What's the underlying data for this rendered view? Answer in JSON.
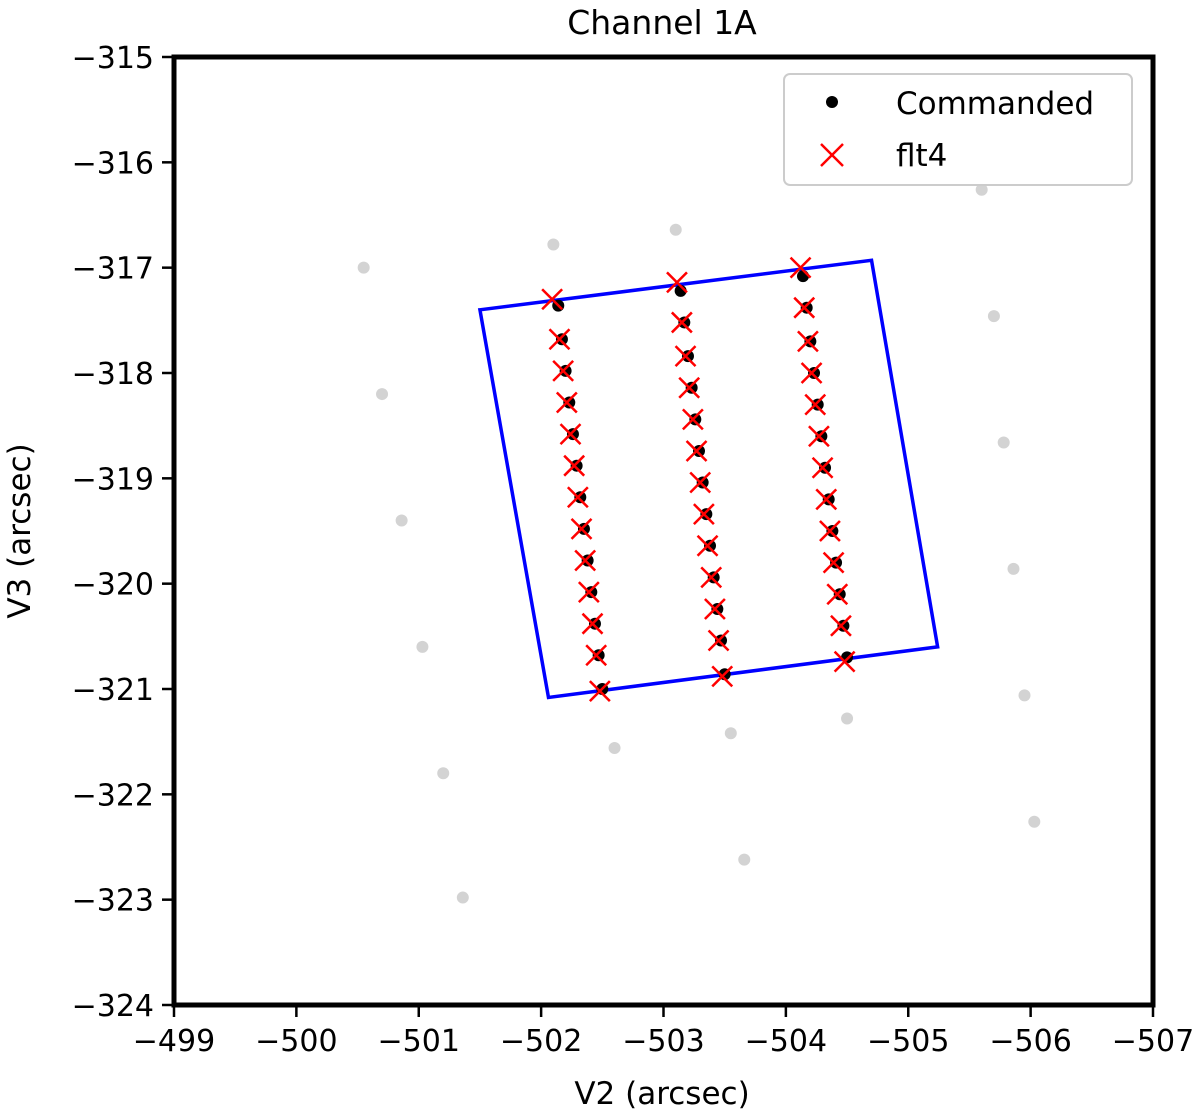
{
  "chart_data": {
    "type": "scatter",
    "title": "Channel 1A",
    "xlabel": "V2 (arcsec)",
    "ylabel": "V3 (arcsec)",
    "xlim": [
      -499,
      -507
    ],
    "ylim": [
      -324,
      -315
    ],
    "x_ticks": [
      -499,
      -500,
      -501,
      -502,
      -503,
      -504,
      -505,
      -506,
      -507
    ],
    "x_tick_labels": [
      "−499",
      "−500",
      "−501",
      "−502",
      "−503",
      "−504",
      "−505",
      "−506",
      "−507"
    ],
    "y_ticks": [
      -315,
      -316,
      -317,
      -318,
      -319,
      -320,
      -321,
      -322,
      -323,
      -324
    ],
    "y_tick_labels": [
      "−315",
      "−316",
      "−317",
      "−318",
      "−319",
      "−320",
      "−321",
      "−322",
      "−323",
      "−324"
    ],
    "grid": false,
    "legend_position": "top-right",
    "legend": [
      {
        "label": "Commanded",
        "marker": "dot",
        "color": "#000000"
      },
      {
        "label": "flt4",
        "marker": "x",
        "color": "#ff0000"
      }
    ],
    "footprint": {
      "color": "#0000ff",
      "vertices": [
        [
          -501.5,
          -317.4
        ],
        [
          -504.7,
          -316.93
        ],
        [
          -505.24,
          -320.6
        ],
        [
          -502.06,
          -321.08
        ]
      ]
    },
    "background_points": {
      "color": "#d3d3d3",
      "points": [
        [
          -500.55,
          -317.0
        ],
        [
          -500.7,
          -318.2
        ],
        [
          -500.86,
          -319.4
        ],
        [
          -501.03,
          -320.6
        ],
        [
          -501.2,
          -321.8
        ],
        [
          -501.36,
          -322.98
        ],
        [
          -502.1,
          -316.78
        ],
        [
          -502.6,
          -321.56
        ],
        [
          -503.1,
          -316.64
        ],
        [
          -503.55,
          -321.42
        ],
        [
          -503.66,
          -322.62
        ],
        [
          -504.5,
          -321.28
        ],
        [
          -505.6,
          -316.26
        ],
        [
          -505.7,
          -317.46
        ],
        [
          -505.78,
          -318.66
        ],
        [
          -505.86,
          -319.86
        ],
        [
          -505.95,
          -321.06
        ],
        [
          -506.03,
          -322.26
        ]
      ]
    },
    "series": [
      {
        "name": "Commanded",
        "color": "#000000",
        "marker": "dot",
        "points": [
          [
            -502.14,
            -317.36
          ],
          [
            -502.17,
            -317.68
          ],
          [
            -502.2,
            -317.98
          ],
          [
            -502.23,
            -318.28
          ],
          [
            -502.26,
            -318.58
          ],
          [
            -502.29,
            -318.88
          ],
          [
            -502.32,
            -319.18
          ],
          [
            -502.35,
            -319.48
          ],
          [
            -502.38,
            -319.78
          ],
          [
            -502.41,
            -320.08
          ],
          [
            -502.44,
            -320.38
          ],
          [
            -502.47,
            -320.68
          ],
          [
            -502.5,
            -321.0
          ],
          [
            -503.14,
            -317.22
          ],
          [
            -503.17,
            -317.52
          ],
          [
            -503.2,
            -317.84
          ],
          [
            -503.23,
            -318.14
          ],
          [
            -503.26,
            -318.44
          ],
          [
            -503.29,
            -318.74
          ],
          [
            -503.32,
            -319.04
          ],
          [
            -503.35,
            -319.34
          ],
          [
            -503.38,
            -319.64
          ],
          [
            -503.41,
            -319.94
          ],
          [
            -503.44,
            -320.24
          ],
          [
            -503.47,
            -320.54
          ],
          [
            -503.5,
            -320.86
          ],
          [
            -504.14,
            -317.08
          ],
          [
            -504.17,
            -317.38
          ],
          [
            -504.2,
            -317.7
          ],
          [
            -504.23,
            -318.0
          ],
          [
            -504.26,
            -318.3
          ],
          [
            -504.29,
            -318.6
          ],
          [
            -504.32,
            -318.9
          ],
          [
            -504.35,
            -319.2
          ],
          [
            -504.38,
            -319.5
          ],
          [
            -504.41,
            -319.8
          ],
          [
            -504.44,
            -320.1
          ],
          [
            -504.47,
            -320.4
          ],
          [
            -504.5,
            -320.7
          ]
        ]
      },
      {
        "name": "flt4",
        "color": "#ff0000",
        "marker": "x",
        "points": [
          [
            -502.09,
            -317.3
          ],
          [
            -502.15,
            -317.68
          ],
          [
            -502.18,
            -317.98
          ],
          [
            -502.21,
            -318.28
          ],
          [
            -502.24,
            -318.58
          ],
          [
            -502.27,
            -318.88
          ],
          [
            -502.3,
            -319.18
          ],
          [
            -502.33,
            -319.48
          ],
          [
            -502.36,
            -319.78
          ],
          [
            -502.39,
            -320.08
          ],
          [
            -502.42,
            -320.38
          ],
          [
            -502.45,
            -320.68
          ],
          [
            -502.48,
            -321.02
          ],
          [
            -503.11,
            -317.14
          ],
          [
            -503.15,
            -317.52
          ],
          [
            -503.18,
            -317.84
          ],
          [
            -503.21,
            -318.14
          ],
          [
            -503.24,
            -318.44
          ],
          [
            -503.27,
            -318.74
          ],
          [
            -503.3,
            -319.04
          ],
          [
            -503.33,
            -319.34
          ],
          [
            -503.36,
            -319.64
          ],
          [
            -503.39,
            -319.94
          ],
          [
            -503.42,
            -320.24
          ],
          [
            -503.45,
            -320.54
          ],
          [
            -503.48,
            -320.88
          ],
          [
            -504.12,
            -317.0
          ],
          [
            -504.15,
            -317.38
          ],
          [
            -504.18,
            -317.7
          ],
          [
            -504.21,
            -318.0
          ],
          [
            -504.24,
            -318.3
          ],
          [
            -504.27,
            -318.6
          ],
          [
            -504.3,
            -318.9
          ],
          [
            -504.33,
            -319.2
          ],
          [
            -504.36,
            -319.5
          ],
          [
            -504.39,
            -319.8
          ],
          [
            -504.42,
            -320.1
          ],
          [
            -504.45,
            -320.4
          ],
          [
            -504.48,
            -320.74
          ]
        ]
      }
    ]
  }
}
